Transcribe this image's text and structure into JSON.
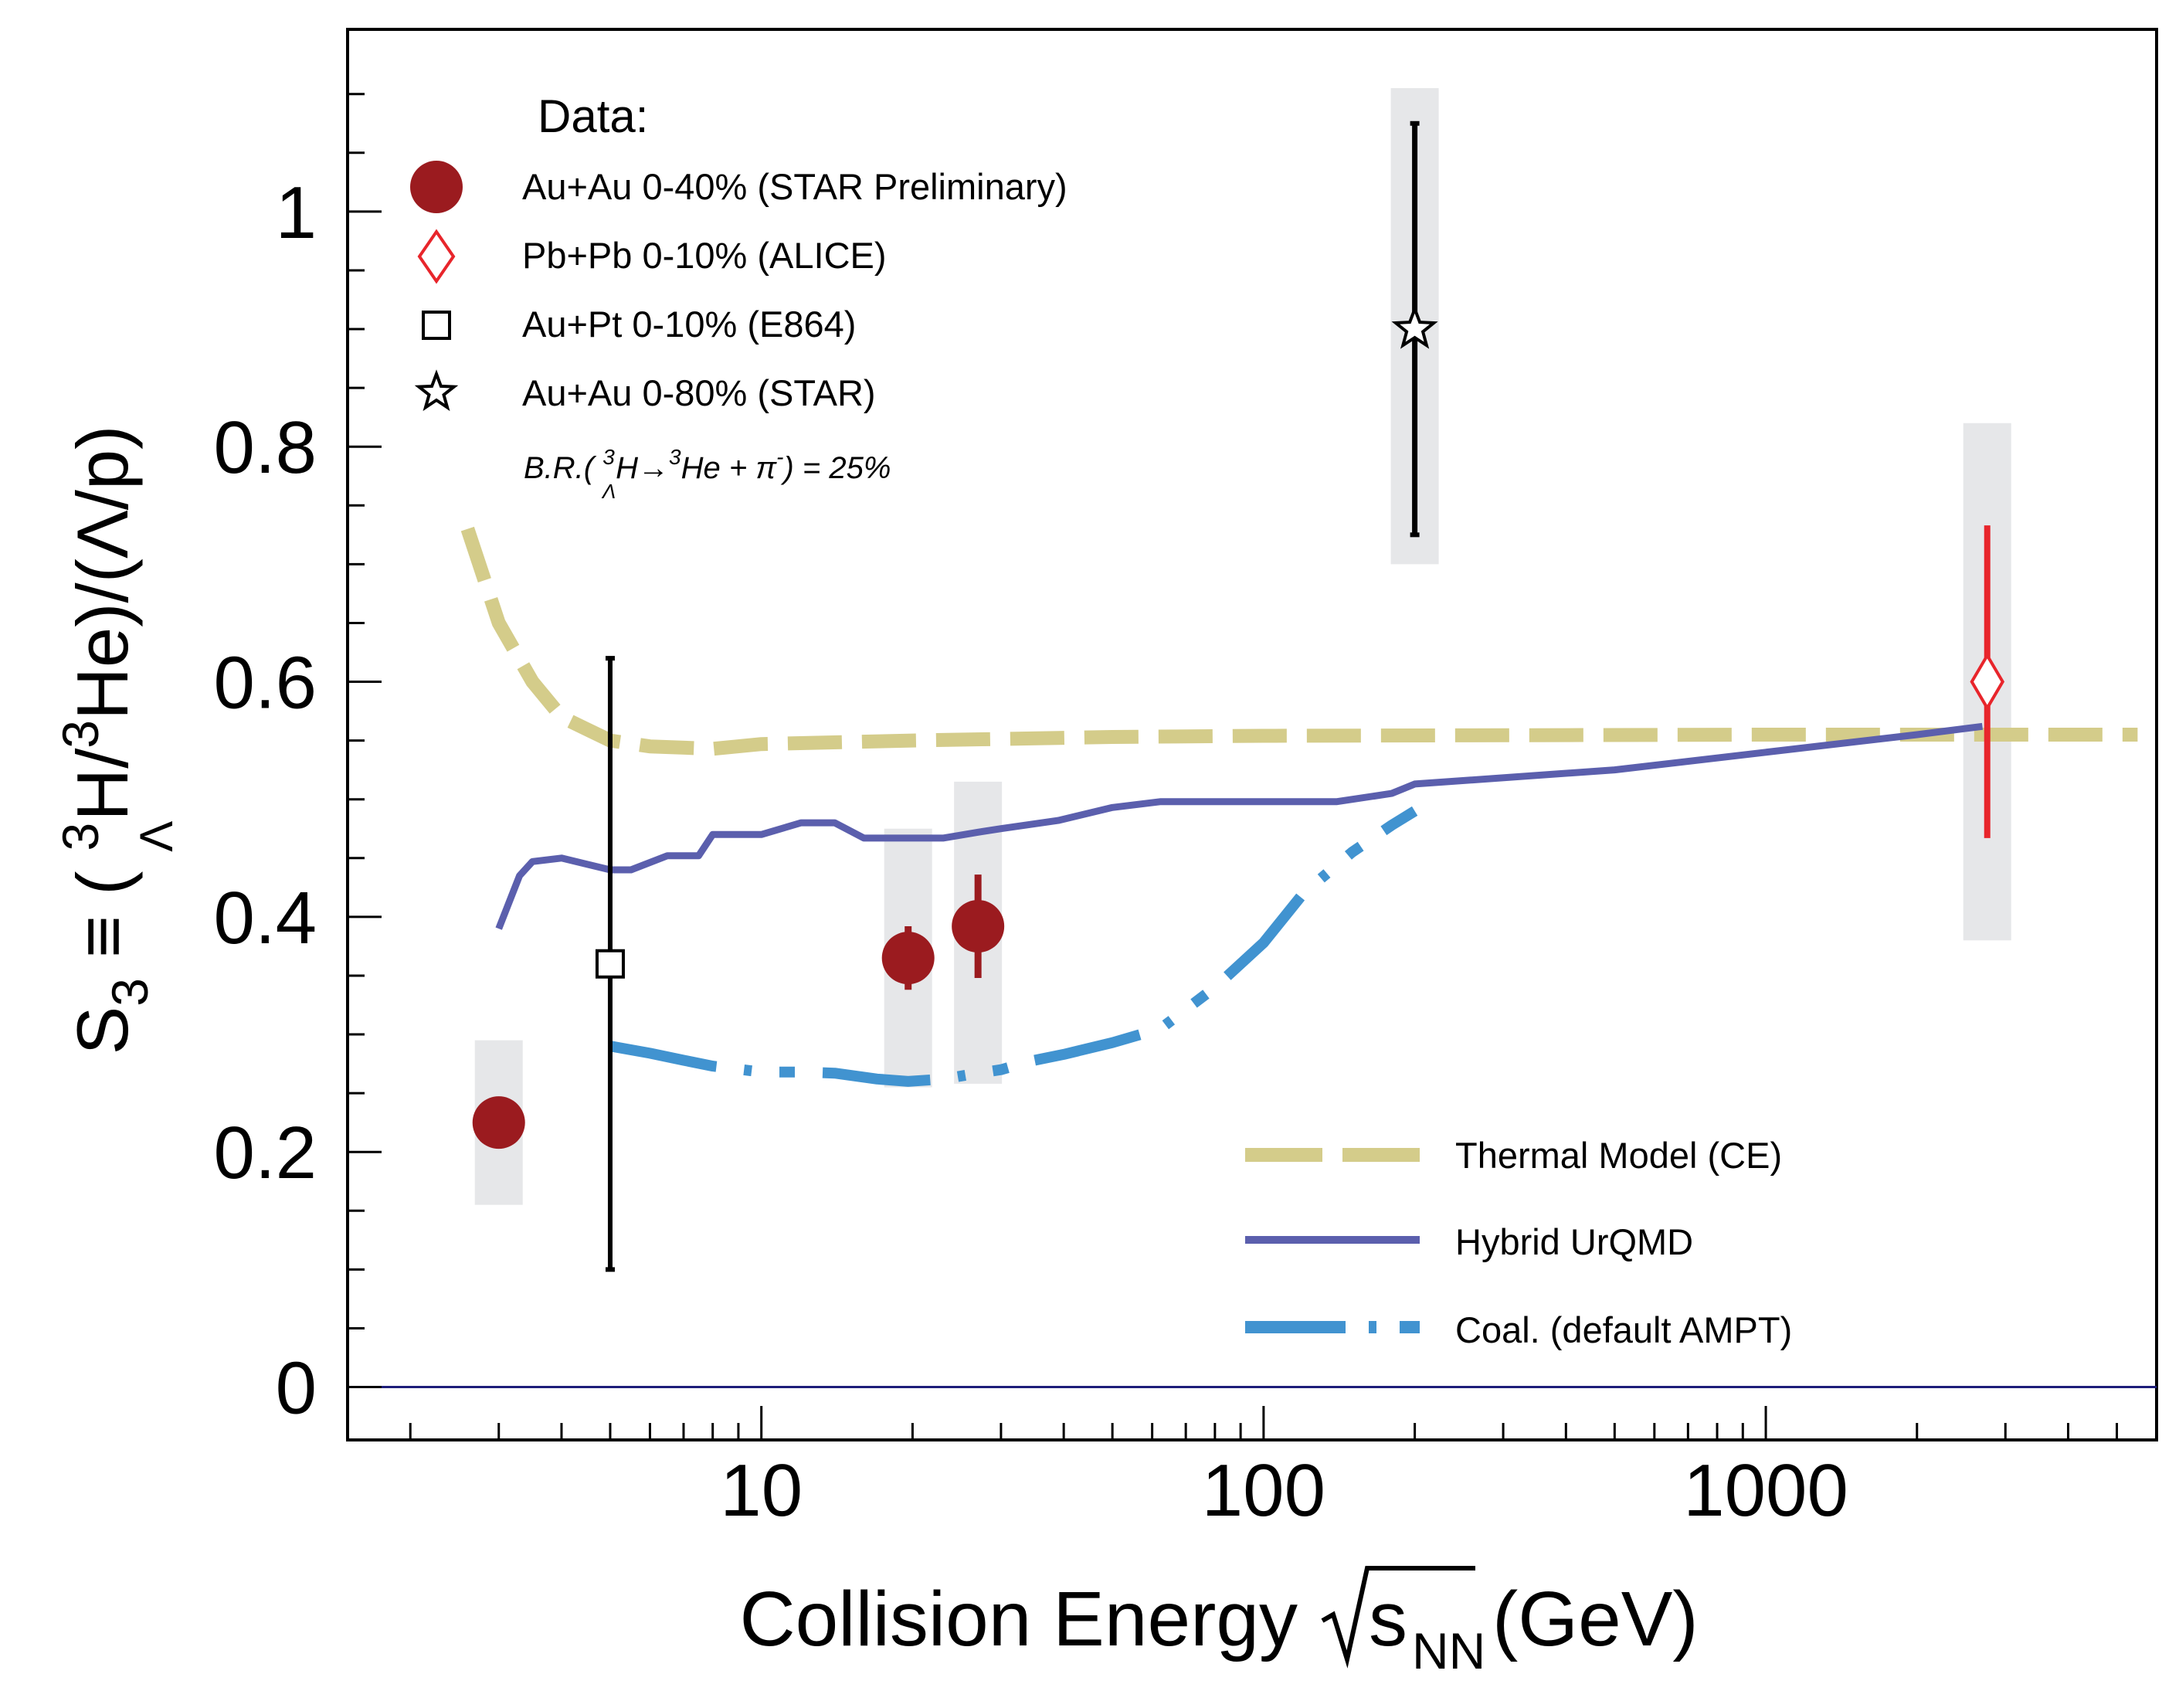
{
  "chart_data": {
    "type": "scatter",
    "xscale": "log",
    "xlim": [
      1.5,
      6000
    ],
    "ylim": [
      -0.045,
      1.155
    ],
    "xlabel_main": "Collision Energy",
    "xlabel_radical": "s",
    "xlabel_radical_sub": "NN",
    "xlabel_unit": "(GeV)",
    "ylabel": {
      "prefix": "S",
      "prefix_sub": "3",
      "equiv": " ≡ ( ",
      "sup1": "3",
      "sub1": "Λ",
      "mid": "H/",
      "sup2": "3",
      "tail": "He)/(Λ/p)"
    },
    "x_ticks": [
      {
        "value": 10,
        "label": "10"
      },
      {
        "value": 100,
        "label": "100"
      },
      {
        "value": 1000,
        "label": "1000"
      }
    ],
    "y_ticks": [
      {
        "value": 0,
        "label": "0"
      },
      {
        "value": 0.2,
        "label": "0.2"
      },
      {
        "value": 0.4,
        "label": "0.4"
      },
      {
        "value": 0.6,
        "label": "0.6"
      },
      {
        "value": 0.8,
        "label": "0.8"
      },
      {
        "value": 1,
        "label": "1"
      }
    ],
    "legend_data": {
      "title": "Data:",
      "entries": [
        {
          "marker": "circle",
          "label": "Au+Au 0-40% (STAR Preliminary)"
        },
        {
          "marker": "diamond",
          "label": "Pb+Pb 0-10% (ALICE)"
        },
        {
          "marker": "square",
          "label": "Au+Pt 0-10% (E864)"
        },
        {
          "marker": "star",
          "label": "Au+Au 0-80% (STAR)"
        }
      ],
      "br": {
        "pre": "B.R.( ",
        "sup1": "3",
        "sub1": "Λ",
        "h": "H",
        "arrow": "→",
        "sup2": "3",
        "he": "He + π",
        "sup3": "-",
        "post": ") = 25%"
      }
    },
    "legend_models": [
      {
        "id": "thermal",
        "label": "Thermal Model (CE)"
      },
      {
        "id": "urqmd",
        "label": "Hybrid UrQMD"
      },
      {
        "id": "ampt",
        "label": "Coal. (default AMPT)"
      }
    ],
    "colors": {
      "star_prelim": "#9b1b1f",
      "alice": "#e8252b",
      "black": "#000000",
      "thermal": "#d4cc8a",
      "urqmd": "#5b5fad",
      "ampt": "#4193d0",
      "sys_band": "#e6e7e9",
      "zero_line": "#1e1e7a"
    },
    "series": [
      {
        "name": "Au+Au 0-40% (STAR Preliminary)",
        "marker": "circle",
        "points": [
          {
            "x": 3.0,
            "y": 0.225,
            "stat": [
              0.225,
              0.225
            ],
            "sys": [
              0.155,
              0.295
            ]
          },
          {
            "x": 19.6,
            "y": 0.365,
            "stat": [
              0.338,
              0.392
            ],
            "sys": [
              0.255,
              0.475
            ]
          },
          {
            "x": 27,
            "y": 0.392,
            "stat": [
              0.348,
              0.436
            ],
            "sys": [
              0.258,
              0.515
            ]
          }
        ]
      },
      {
        "name": "Pb+Pb 0-10% (ALICE)",
        "marker": "diamond",
        "points": [
          {
            "x": 2760,
            "y": 0.6,
            "stat": [
              0.467,
              0.733
            ],
            "sys": [
              0.38,
              0.82
            ]
          }
        ]
      },
      {
        "name": "Au+Pt 0-10% (E864)",
        "marker": "square",
        "points": [
          {
            "x": 5.0,
            "y": 0.36,
            "stat": [
              0.1,
              0.62
            ]
          }
        ]
      },
      {
        "name": "Au+Au 0-80% (STAR)",
        "marker": "star",
        "points": [
          {
            "x": 200,
            "y": 0.9,
            "stat": [
              0.725,
              1.075
            ],
            "sys": [
              0.7,
              1.105
            ]
          }
        ]
      }
    ],
    "curves": [
      {
        "name": "Thermal Model (CE)",
        "style": "dashed",
        "points": [
          [
            2.6,
            0.73
          ],
          [
            3.0,
            0.65
          ],
          [
            3.5,
            0.6
          ],
          [
            4.0,
            0.57
          ],
          [
            5.0,
            0.55
          ],
          [
            6.0,
            0.545
          ],
          [
            8.0,
            0.543
          ],
          [
            10,
            0.547
          ],
          [
            20,
            0.55
          ],
          [
            50,
            0.553
          ],
          [
            100,
            0.554
          ],
          [
            1000,
            0.555
          ],
          [
            5500,
            0.555
          ]
        ]
      },
      {
        "name": "Hybrid UrQMD",
        "style": "solid",
        "points": [
          [
            3.0,
            0.39
          ],
          [
            3.3,
            0.435
          ],
          [
            3.5,
            0.447
          ],
          [
            4.0,
            0.45
          ],
          [
            5.0,
            0.44
          ],
          [
            5.5,
            0.44
          ],
          [
            6.5,
            0.452
          ],
          [
            7.5,
            0.452
          ],
          [
            8.0,
            0.47
          ],
          [
            10,
            0.47
          ],
          [
            12,
            0.48
          ],
          [
            14,
            0.48
          ],
          [
            16,
            0.467
          ],
          [
            20,
            0.467
          ],
          [
            23,
            0.467
          ],
          [
            27,
            0.472
          ],
          [
            30,
            0.475
          ],
          [
            39,
            0.482
          ],
          [
            50,
            0.493
          ],
          [
            62.4,
            0.498
          ],
          [
            100,
            0.498
          ],
          [
            140,
            0.498
          ],
          [
            180,
            0.505
          ],
          [
            200,
            0.513
          ],
          [
            500,
            0.525
          ],
          [
            1000,
            0.54
          ],
          [
            2000,
            0.555
          ],
          [
            2700,
            0.562
          ]
        ]
      },
      {
        "name": "Coal. (default AMPT)",
        "style": "dashdot",
        "points": [
          [
            5.0,
            0.29
          ],
          [
            6.0,
            0.284
          ],
          [
            7.0,
            0.278
          ],
          [
            8.0,
            0.273
          ],
          [
            10,
            0.268
          ],
          [
            12,
            0.268
          ],
          [
            14,
            0.267
          ],
          [
            17,
            0.262
          ],
          [
            19.6,
            0.26
          ],
          [
            23,
            0.262
          ],
          [
            27,
            0.267
          ],
          [
            30,
            0.27
          ],
          [
            35,
            0.278
          ],
          [
            40,
            0.283
          ],
          [
            50,
            0.293
          ],
          [
            62.4,
            0.305
          ],
          [
            80,
            0.34
          ],
          [
            100,
            0.378
          ],
          [
            120,
            0.42
          ],
          [
            150,
            0.455
          ],
          [
            180,
            0.478
          ],
          [
            200,
            0.49
          ]
        ]
      }
    ]
  }
}
